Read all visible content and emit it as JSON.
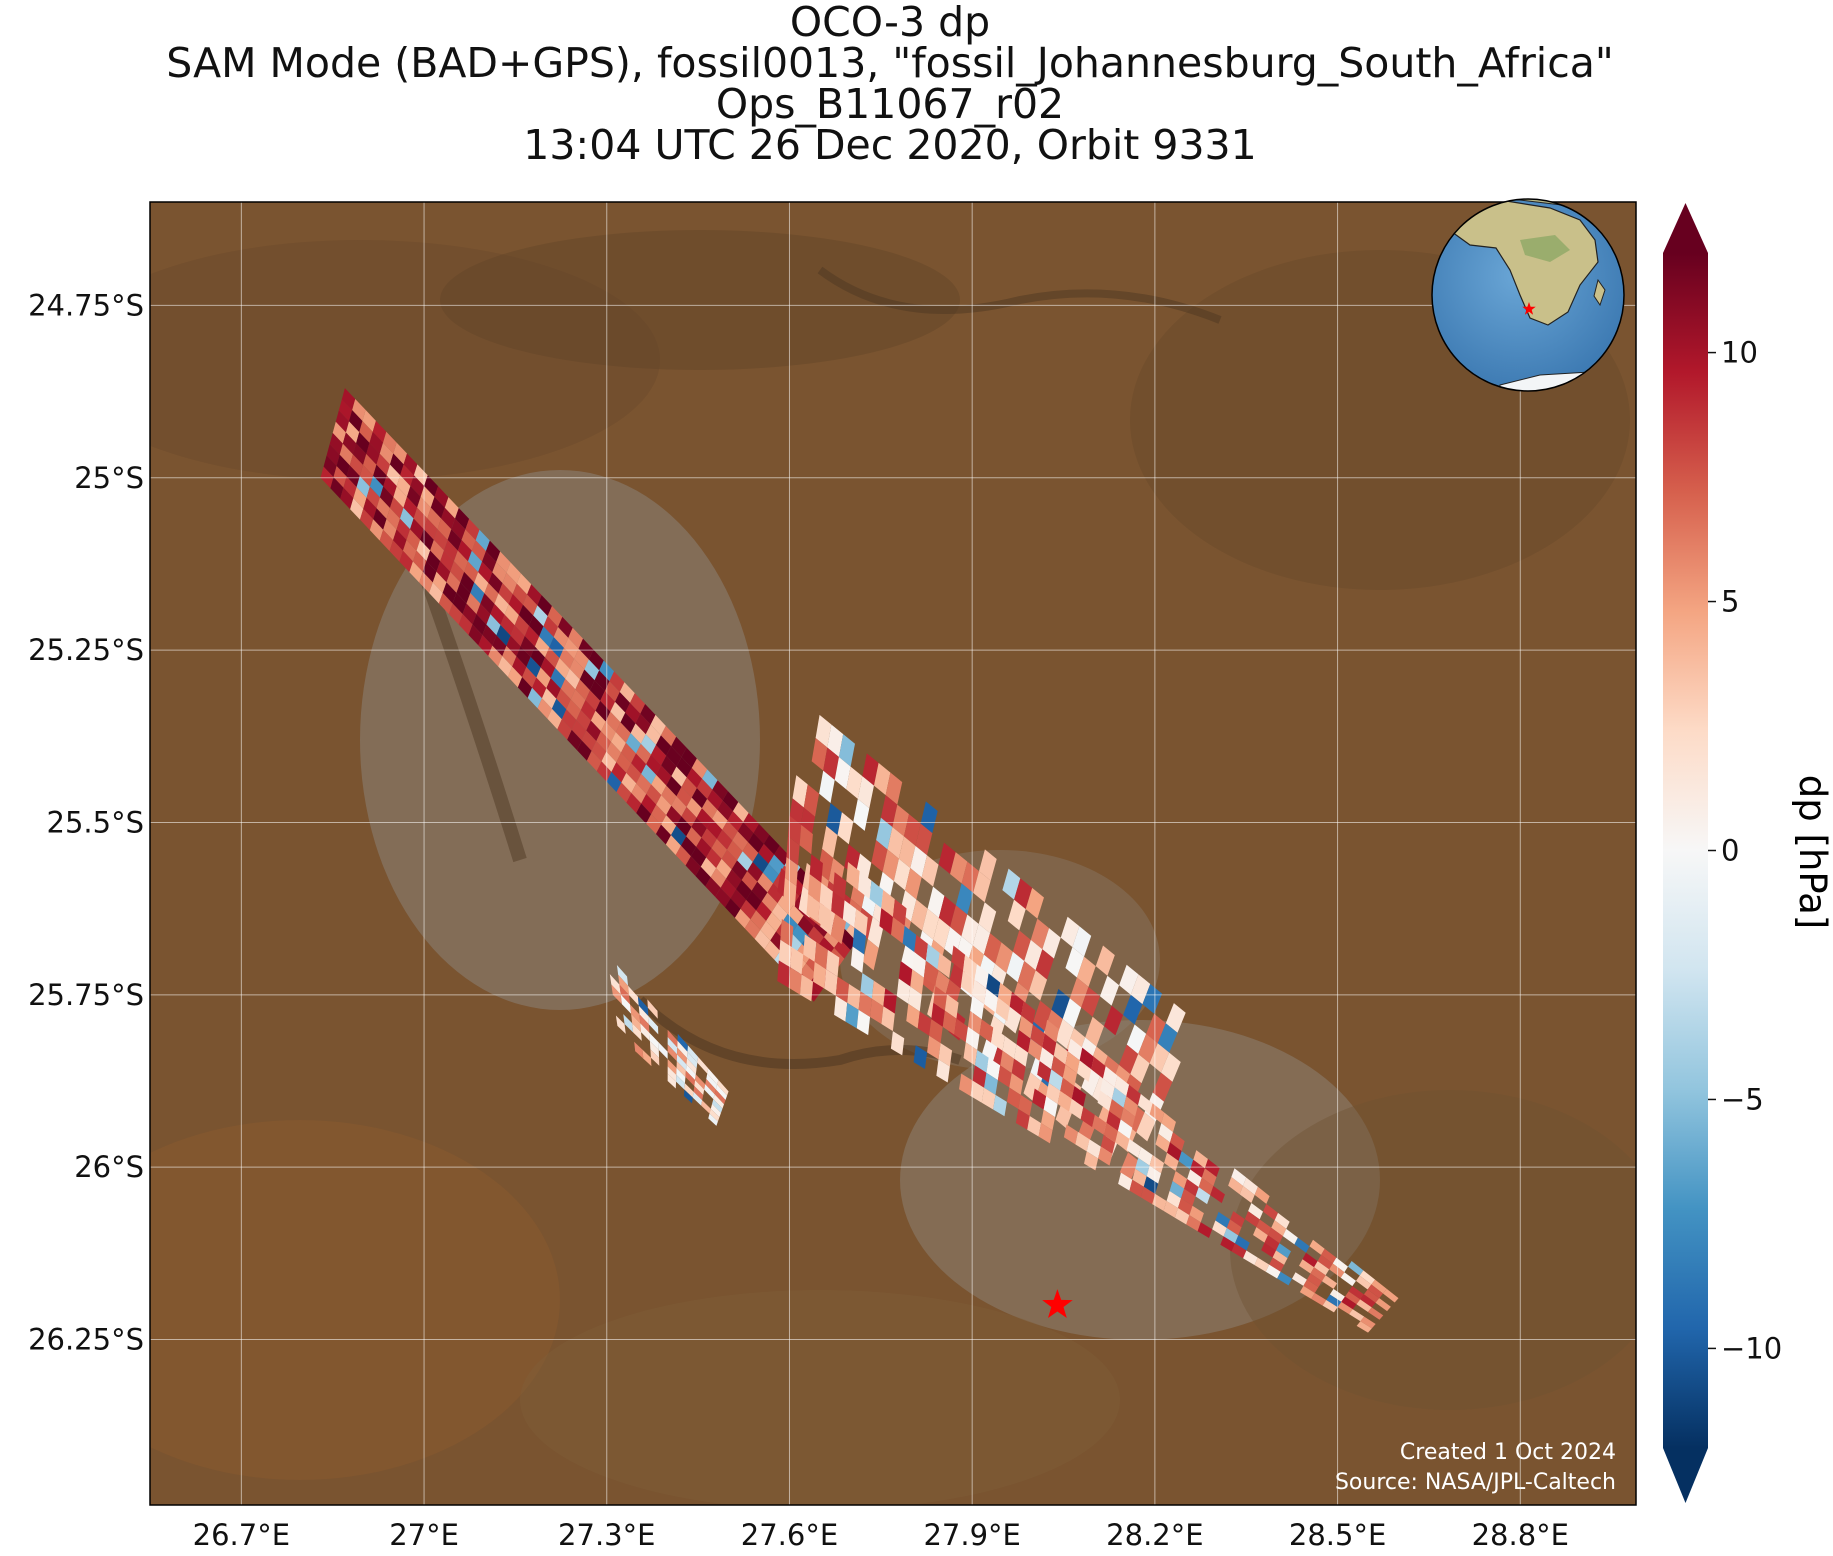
{
  "title": {
    "line1": "OCO-3 dp",
    "line2": "SAM Mode (BAD+GPS), fossil0013, \"fossil_Johannesburg_South_Africa\"",
    "line3": "Ops_B11067_r02",
    "line4": "13:04 UTC 26 Dec 2020, Orbit 9331"
  },
  "map": {
    "lon_range": [
      26.55,
      28.99
    ],
    "lat_range": [
      -26.49,
      -24.6
    ],
    "x_ticks": [
      {
        "value": 26.7,
        "label": "26.7°E"
      },
      {
        "value": 27.0,
        "label": "27°E"
      },
      {
        "value": 27.3,
        "label": "27.3°E"
      },
      {
        "value": 27.6,
        "label": "27.6°E"
      },
      {
        "value": 27.9,
        "label": "27.9°E"
      },
      {
        "value": 28.2,
        "label": "28.2°E"
      },
      {
        "value": 28.5,
        "label": "28.5°E"
      },
      {
        "value": 28.8,
        "label": "28.8°E"
      }
    ],
    "y_ticks": [
      {
        "value": -24.75,
        "label": "24.75°S"
      },
      {
        "value": -25.0,
        "label": "25°S"
      },
      {
        "value": -25.25,
        "label": "25.25°S"
      },
      {
        "value": -25.5,
        "label": "25.5°S"
      },
      {
        "value": -25.75,
        "label": "25.75°S"
      },
      {
        "value": -26.0,
        "label": "26°S"
      },
      {
        "value": -26.25,
        "label": "26.25°S"
      }
    ],
    "grid": true,
    "background": "satellite imagery",
    "target_marker": {
      "lon": 28.04,
      "lat": -26.2,
      "color": "#ff0000",
      "shape": "star"
    }
  },
  "swaths": [
    {
      "name": "north-swath",
      "corners": [
        [
          26.87,
          -24.87
        ],
        [
          27.72,
          -25.66
        ],
        [
          27.64,
          -25.76
        ],
        [
          26.83,
          -25.0
        ]
      ],
      "mean_dp": 8.5
    },
    {
      "name": "central-east-swath",
      "corners": [
        [
          27.63,
          -25.33
        ],
        [
          28.27,
          -25.79
        ],
        [
          28.16,
          -26.02
        ],
        [
          27.58,
          -25.6
        ]
      ],
      "mean_dp": 4.5
    },
    {
      "name": "south-swath",
      "corners": [
        [
          27.6,
          -25.49
        ],
        [
          28.6,
          -26.19
        ],
        [
          28.55,
          -26.24
        ],
        [
          27.58,
          -25.73
        ]
      ],
      "mean_dp": 5.0
    },
    {
      "name": "west-fragment",
      "corners": [
        [
          27.3,
          -25.69
        ],
        [
          27.5,
          -25.89
        ],
        [
          27.48,
          -25.94
        ],
        [
          27.32,
          -25.81
        ]
      ],
      "mean_dp": 2.0
    }
  ],
  "colorbar": {
    "label": "dp [hPa]",
    "range": [
      -12,
      12
    ],
    "ticks": [
      {
        "value": 10,
        "label": "10"
      },
      {
        "value": 5,
        "label": "5"
      },
      {
        "value": 0,
        "label": "0"
      },
      {
        "value": -5,
        "label": "−5"
      },
      {
        "value": -10,
        "label": "−10"
      }
    ],
    "colormap": "RdBu_r",
    "stops": [
      "#053061",
      "#2166ac",
      "#4393c3",
      "#92c5de",
      "#d1e5f0",
      "#f7f7f7",
      "#fddbc7",
      "#f4a582",
      "#d6604d",
      "#b2182b",
      "#67001f"
    ]
  },
  "inset_globe": {
    "center": "Africa",
    "marker_color": "#ff0000"
  },
  "credit": {
    "created": "Created 1 Oct 2024",
    "source": "Source: NASA/JPL-Caltech"
  }
}
